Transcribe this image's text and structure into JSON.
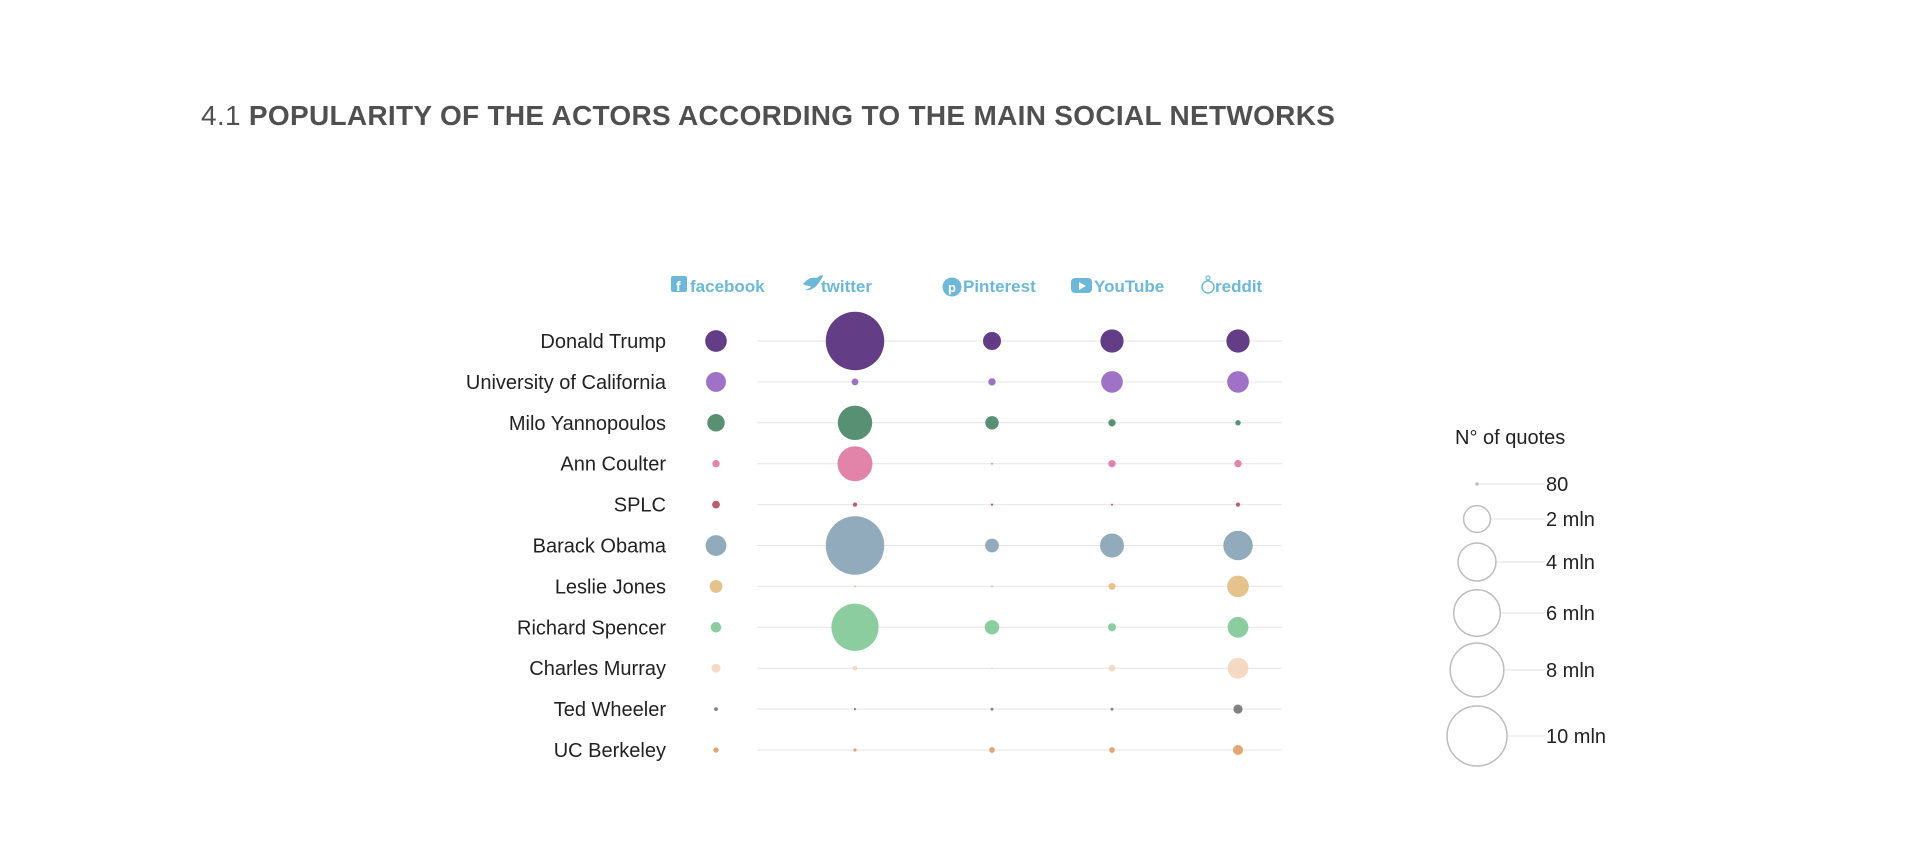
{
  "header": {
    "number": "4.1",
    "title": "POPULARITY OF THE ACTORS ACCORDING TO THE MAIN SOCIAL NETWORKS"
  },
  "chart_data": {
    "type": "scatter",
    "subtype": "bubble-matrix",
    "columns": [
      {
        "label": "facebook",
        "icon": "facebook-icon"
      },
      {
        "label": "twitter",
        "icon": "twitter-bird-icon"
      },
      {
        "label": "Pinterest",
        "icon": "pinterest-icon"
      },
      {
        "label": "YouTube",
        "icon": "youtube-play-icon"
      },
      {
        "label": "reddit",
        "icon": "reddit-alien-icon"
      }
    ],
    "rows": [
      {
        "label": "Donald Trump",
        "color": "#5b3380",
        "values": [
          1300000,
          9500000,
          900000,
          1500000,
          1500000
        ]
      },
      {
        "label": "University of California",
        "color": "#9a6ac4",
        "values": [
          1100000,
          130000,
          150000,
          1300000,
          1300000
        ]
      },
      {
        "label": "Milo Yannopoulos",
        "color": "#4e8a6b",
        "values": [
          850000,
          3300000,
          500000,
          150000,
          80000
        ]
      },
      {
        "label": "Ann Coulter",
        "color": "#e07ca5",
        "values": [
          150000,
          3400000,
          4000,
          150000,
          150000
        ]
      },
      {
        "label": "SPLC",
        "color": "#b95460",
        "values": [
          170000,
          50000,
          15000,
          10000,
          50000
        ]
      },
      {
        "label": "Barack Obama",
        "color": "#8ba6b8",
        "values": [
          1200000,
          9500000,
          520000,
          1600000,
          2400000
        ]
      },
      {
        "label": "Leslie Jones",
        "color": "#e5bf86",
        "values": [
          460000,
          3000,
          3000,
          140000,
          1300000
        ]
      },
      {
        "label": "Richard Spencer",
        "color": "#85ca9a",
        "values": [
          310000,
          6200000,
          580000,
          180000,
          1200000
        ]
      },
      {
        "label": "Charles Murray",
        "color": "#f4d7bf",
        "values": [
          220000,
          60000,
          3000,
          120000,
          1200000
        ]
      },
      {
        "label": "Ted Wheeler",
        "color": "#7a7a7a",
        "values": [
          40000,
          15000,
          22000,
          22000,
          230000
        ]
      },
      {
        "label": "UC Berkeley",
        "color": "#e2a06c",
        "values": [
          80000,
          30000,
          90000,
          90000,
          280000
        ]
      }
    ],
    "size_legend": {
      "title": "N° of quotes",
      "items": [
        {
          "label": "80",
          "value": 80
        },
        {
          "label": "2 mln",
          "value": 2000000
        },
        {
          "label": "4 mln",
          "value": 4000000
        },
        {
          "label": "6 mln",
          "value": 6000000
        },
        {
          "label": "8 mln",
          "value": 8000000
        },
        {
          "label": "10 mln",
          "value": 10000000
        }
      ]
    }
  }
}
